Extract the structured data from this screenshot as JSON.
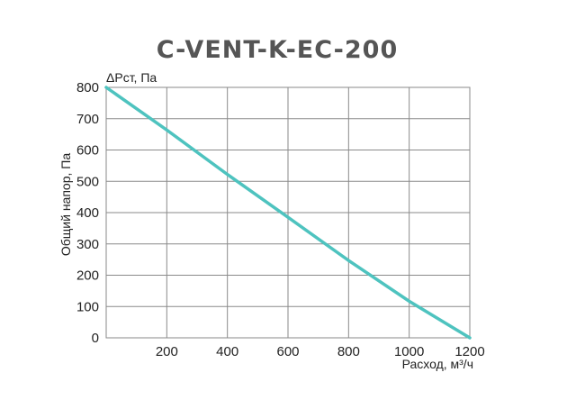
{
  "chart_data": {
    "type": "line",
    "title": "C-VENT-K-EC-200",
    "ylabel": "Общий напор, Па",
    "ylabel_top": "ΔPст, Па",
    "xlabel": "Расход, м³/ч",
    "xlim": [
      0,
      1200
    ],
    "ylim": [
      0,
      800
    ],
    "x_ticks": [
      200,
      400,
      600,
      800,
      1000,
      1200
    ],
    "y_ticks": [
      0,
      100,
      200,
      300,
      400,
      500,
      600,
      700,
      800
    ],
    "grid": true,
    "line_color": "#4ec3bf",
    "series": [
      {
        "x": [
          0,
          200,
          400,
          600,
          800,
          1000,
          1200
        ],
        "values": [
          800,
          664,
          522,
          385,
          247,
          117,
          0
        ]
      }
    ]
  }
}
